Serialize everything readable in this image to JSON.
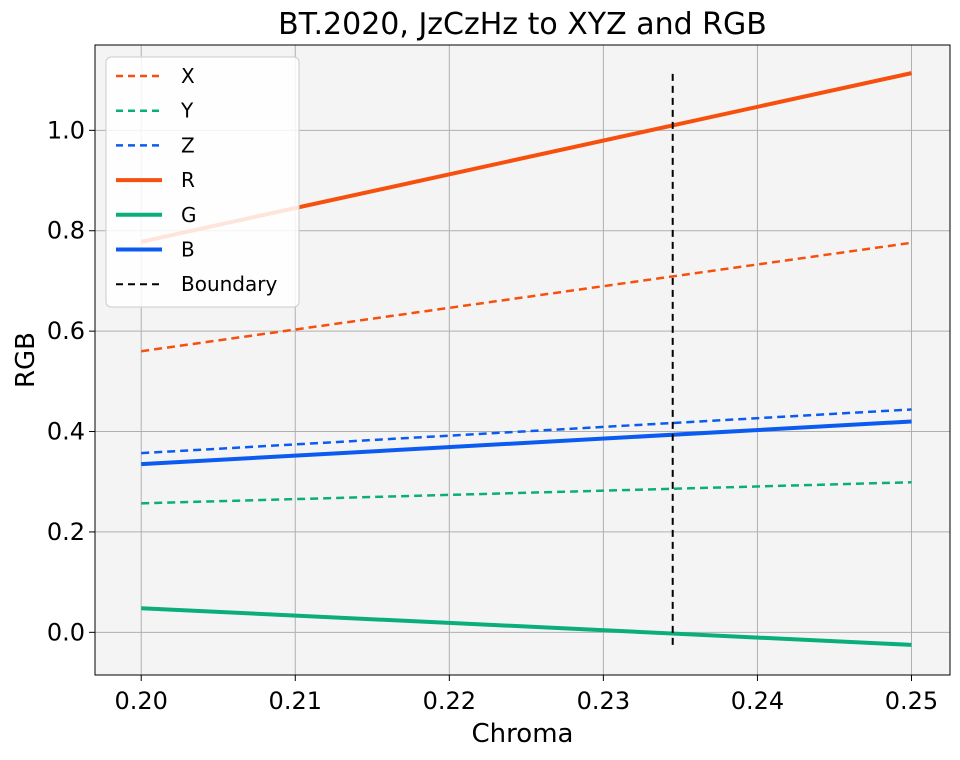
{
  "chart_data": {
    "type": "line",
    "title": "BT.2020, JzCzHz to XYZ and RGB",
    "xlabel": "Chroma",
    "ylabel": "RGB",
    "xlim": [
      0.197,
      0.2525
    ],
    "ylim": [
      -0.085,
      1.17
    ],
    "grid": true,
    "legend_position": "top-left",
    "plot_background": "#f4f4f4",
    "x_ticks": [
      0.2,
      0.21,
      0.22,
      0.23,
      0.24,
      0.25
    ],
    "x_tick_labels": [
      "0.20",
      "0.21",
      "0.22",
      "0.23",
      "0.24",
      "0.25"
    ],
    "y_ticks": [
      0.0,
      0.2,
      0.4,
      0.6,
      0.8,
      1.0
    ],
    "y_tick_labels": [
      "0.0",
      "0.2",
      "0.4",
      "0.6",
      "0.8",
      "1.0"
    ],
    "x": [
      0.2,
      0.25
    ],
    "series": [
      {
        "name": "X",
        "values": [
          0.56,
          0.776
        ],
        "color": "#f74f0e",
        "style": "dashed",
        "width": 2.5
      },
      {
        "name": "Y",
        "values": [
          0.257,
          0.299
        ],
        "color": "#0aae7a",
        "style": "dashed",
        "width": 2.5
      },
      {
        "name": "Z",
        "values": [
          0.357,
          0.444
        ],
        "color": "#0c5bf0",
        "style": "dashed",
        "width": 2.5
      },
      {
        "name": "R",
        "values": [
          0.778,
          1.114
        ],
        "color": "#f74f0e",
        "style": "solid",
        "width": 4
      },
      {
        "name": "G",
        "values": [
          0.048,
          -0.025
        ],
        "color": "#0aae7a",
        "style": "solid",
        "width": 4
      },
      {
        "name": "B",
        "values": [
          0.335,
          0.42
        ],
        "color": "#0c5bf0",
        "style": "solid",
        "width": 4
      }
    ],
    "boundary": {
      "name": "Boundary",
      "x": 0.2345,
      "y_range": [
        -0.025,
        1.115
      ],
      "color": "#000000",
      "style": "dashed",
      "width": 2
    }
  }
}
